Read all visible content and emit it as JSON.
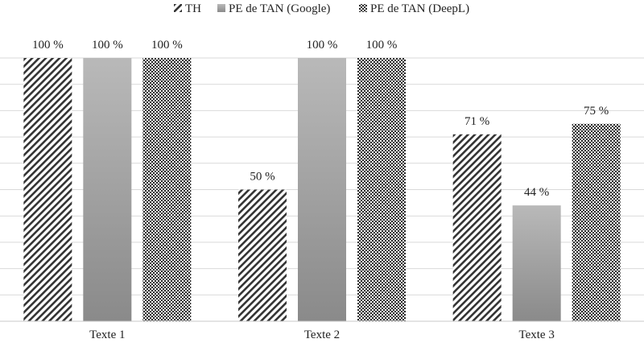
{
  "chart_data": {
    "type": "bar",
    "categories": [
      "Texte 1",
      "Texte 2",
      "Texte 3"
    ],
    "series": [
      {
        "name": "TH",
        "values": [
          100,
          50,
          71
        ],
        "labels": [
          "100 %",
          "50 %",
          "71 %"
        ],
        "pattern": "diagonal-hatch"
      },
      {
        "name": "PE de TAN (Google)",
        "values": [
          100,
          100,
          44
        ],
        "labels": [
          "100 %",
          "100 %",
          "44 %"
        ],
        "pattern": "gray-gradient"
      },
      {
        "name": "PE de TAN (DeepL)",
        "values": [
          100,
          100,
          75
        ],
        "labels": [
          "100 %",
          "100 %",
          "75 %"
        ],
        "pattern": "checker"
      }
    ],
    "ylim": [
      0,
      100
    ],
    "grid": true,
    "legend": "top-center",
    "title": "",
    "xlabel": "",
    "ylabel": ""
  }
}
